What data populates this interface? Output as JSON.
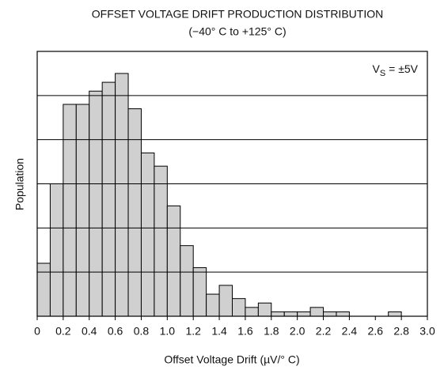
{
  "chart_data": {
    "type": "histogram",
    "title": "OFFSET VOLTAGE DRIFT PRODUCTION DISTRIBUTION",
    "subtitle": "(−40° C to +125° C)",
    "xlabel": "Offset Voltage Drift (µV/° C)",
    "ylabel": "Population",
    "annotation": {
      "main": "V",
      "sub": "S",
      "rest": " = ±5V"
    },
    "bins": [
      0,
      0.1,
      0.2,
      0.3,
      0.4,
      0.5,
      0.6,
      0.7,
      0.8,
      0.9,
      1.0,
      1.1,
      1.2,
      1.3,
      1.4,
      1.5,
      1.6,
      1.7,
      1.8,
      1.9,
      2.0,
      2.1,
      2.2,
      2.3,
      2.4,
      2.5,
      2.6,
      2.7,
      2.8,
      2.9,
      3.0
    ],
    "counts": [
      1.2,
      3.0,
      4.8,
      4.8,
      5.1,
      5.3,
      5.5,
      4.7,
      3.7,
      3.4,
      2.5,
      1.6,
      1.1,
      0.5,
      0.7,
      0.4,
      0.2,
      0.3,
      0.1,
      0.1,
      0.1,
      0.2,
      0.1,
      0.1,
      0,
      0,
      0,
      0.1,
      0,
      0
    ],
    "color": "#d0d0d0",
    "xlim": [
      0,
      3
    ],
    "xticks": [
      0,
      0.2,
      0.4,
      0.6,
      0.8,
      {
        "value": 1,
        "label": "1.0"
      },
      1.2,
      1.4,
      1.6,
      1.8,
      {
        "value": 2,
        "label": "2.0"
      },
      2.2,
      2.4,
      2.6,
      2.8,
      {
        "value": 3,
        "label": "3.0"
      }
    ],
    "ylim": [
      0,
      6
    ],
    "yticks": [
      1,
      2,
      3,
      4,
      5
    ],
    "grid": true
  }
}
